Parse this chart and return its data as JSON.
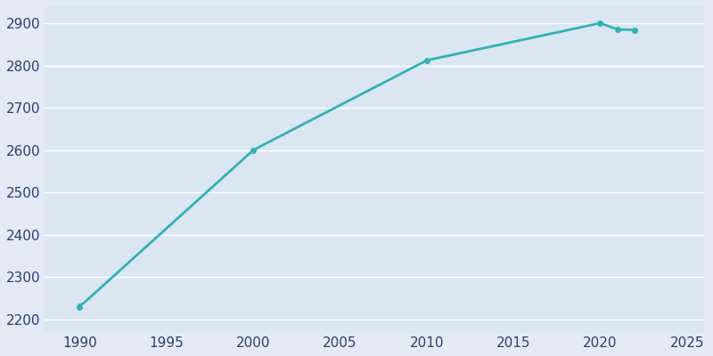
{
  "years": [
    1990,
    2000,
    2010,
    2020,
    2021,
    2022
  ],
  "population": [
    2230,
    2600,
    2812,
    2900,
    2885,
    2884
  ],
  "line_color": "#2ab5b5",
  "marker_color": "#2ab5b5",
  "background_color": "#e3eaf5",
  "axes_bg_color": "#dce6f0",
  "grid_color": "#ffffff",
  "text_color": "#2d3f6b",
  "xlim": [
    1988,
    2026
  ],
  "ylim": [
    2170,
    2940
  ],
  "yticks": [
    2200,
    2300,
    2400,
    2500,
    2600,
    2700,
    2800,
    2900
  ],
  "xticks": [
    1990,
    1995,
    2000,
    2005,
    2010,
    2015,
    2020,
    2025
  ],
  "figsize": [
    8.0,
    4.0
  ],
  "dpi": 100
}
